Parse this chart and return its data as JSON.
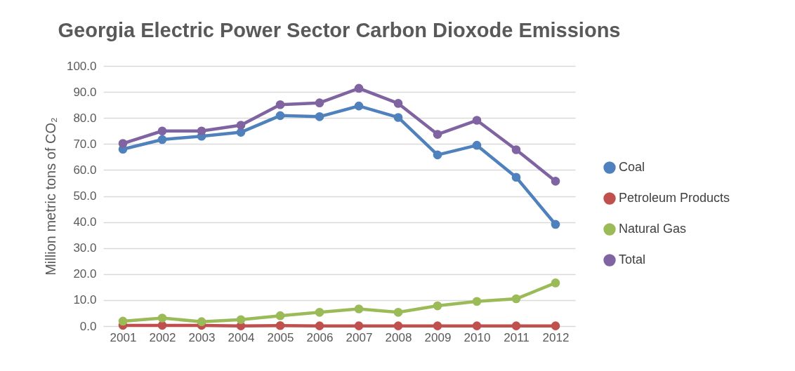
{
  "chart_data": {
    "type": "line",
    "title": "Georgia Electric Power Sector Carbon Dioxode Emissions",
    "ylabel": "Million metric tons of CO₂",
    "categories": [
      "2001",
      "2002",
      "2003",
      "2004",
      "2005",
      "2006",
      "2007",
      "2008",
      "2009",
      "2010",
      "2011",
      "2012"
    ],
    "series": [
      {
        "name": "Coal",
        "color": "#4f81bd",
        "values": [
          68.0,
          71.7,
          73.0,
          74.5,
          80.9,
          80.5,
          84.6,
          80.2,
          65.8,
          69.5,
          57.2,
          39.1
        ]
      },
      {
        "name": "Petroleum Products",
        "color": "#c0504d",
        "values": [
          0.3,
          0.3,
          0.3,
          0.1,
          0.2,
          0.1,
          0.1,
          0.1,
          0.1,
          0.1,
          0.1,
          0.1
        ]
      },
      {
        "name": "Natural Gas",
        "color": "#9bbb59",
        "values": [
          1.9,
          3.1,
          1.7,
          2.5,
          4.0,
          5.3,
          6.6,
          5.3,
          7.8,
          9.5,
          10.5,
          16.6
        ]
      },
      {
        "name": "Total",
        "color": "#8064a2",
        "values": [
          70.2,
          75.0,
          75.0,
          77.2,
          85.1,
          85.8,
          91.4,
          85.6,
          73.7,
          79.1,
          67.8,
          55.7
        ]
      }
    ],
    "ylim": [
      0,
      100
    ],
    "yticks": [
      {
        "value": 0,
        "label": "0.0"
      },
      {
        "value": 10,
        "label": "10.0"
      },
      {
        "value": 20,
        "label": "20.0"
      },
      {
        "value": 30,
        "label": "30.0"
      },
      {
        "value": 40,
        "label": "40.0"
      },
      {
        "value": 50,
        "label": "50.0"
      },
      {
        "value": 60,
        "label": "60.0"
      },
      {
        "value": 70,
        "label": "70.0"
      },
      {
        "value": 80,
        "label": "80.0"
      },
      {
        "value": 90,
        "label": "90.0"
      },
      {
        "value": 100,
        "label": "100.0"
      }
    ],
    "grid": "y",
    "legend": "right",
    "marker": "circle",
    "line_style": "solid"
  }
}
